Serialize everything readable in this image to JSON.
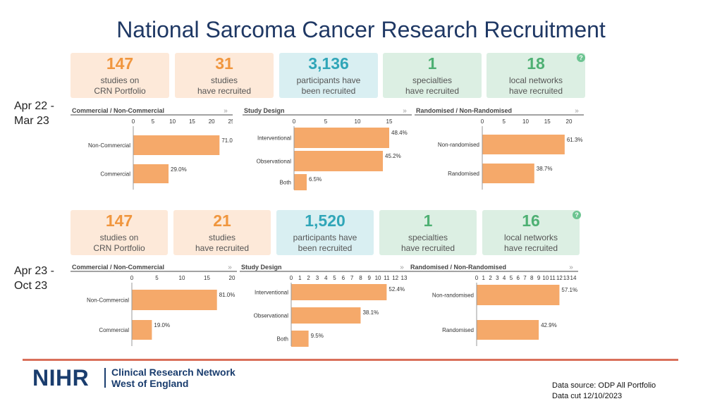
{
  "title": "National Sarcoma Cancer Research Recruitment",
  "periods": [
    {
      "label_line1": "Apr 22 -",
      "label_line2": "Mar 23",
      "cards": [
        {
          "value": "147",
          "line1": "studies on",
          "line2": "CRN Portfolio",
          "color": "orange"
        },
        {
          "value": "31",
          "line1": "studies",
          "line2": "have recruited",
          "color": "orange"
        },
        {
          "value": "3,136",
          "line1": "participants have",
          "line2": "been recruited",
          "color": "blue"
        },
        {
          "value": "1",
          "line1": "specialties",
          "line2": "have recruited",
          "color": "green"
        },
        {
          "value": "18",
          "line1": "local networks",
          "line2": "have recruited",
          "color": "green"
        }
      ],
      "help_icon": "?"
    },
    {
      "label_line1": "Apr 23 -",
      "label_line2": "Oct 23",
      "cards": [
        {
          "value": "147",
          "line1": "studies on",
          "line2": "CRN Portfolio",
          "color": "orange"
        },
        {
          "value": "21",
          "line1": "studies",
          "line2": "have recruited",
          "color": "orange"
        },
        {
          "value": "1,520",
          "line1": "participants have",
          "line2": "been recruited",
          "color": "blue"
        },
        {
          "value": "1",
          "line1": "specialties",
          "line2": "have recruited",
          "color": "green"
        },
        {
          "value": "16",
          "line1": "local networks",
          "line2": "have recruited",
          "color": "green"
        }
      ],
      "help_icon": "?"
    }
  ],
  "colors": {
    "bar": "#f5a96a",
    "axis": "#999999",
    "title_rule": "#444444"
  },
  "expand_icon": "»",
  "chart_data": [
    {
      "type": "bar",
      "orientation": "horizontal",
      "period": "Apr 22 - Mar 23",
      "title": "Commercial / Non-Commercial",
      "categories": [
        "Non-Commercial",
        "Commercial"
      ],
      "values": [
        22,
        9
      ],
      "labels": [
        "71.0%",
        "29.0%"
      ],
      "ticks": [
        "0",
        "5",
        "10",
        "15",
        "20",
        "25"
      ],
      "xlim": [
        0,
        25
      ]
    },
    {
      "type": "bar",
      "orientation": "horizontal",
      "period": "Apr 22 - Mar 23",
      "title": "Study Design",
      "categories": [
        "Interventional",
        "Observational",
        "Both"
      ],
      "values": [
        15,
        14,
        2
      ],
      "labels": [
        "48.4%",
        "45.2%",
        "6.5%"
      ],
      "ticks": [
        "0",
        "5",
        "10",
        "15"
      ],
      "xlim": [
        0,
        15
      ]
    },
    {
      "type": "bar",
      "orientation": "horizontal",
      "period": "Apr 22 - Mar 23",
      "title": "Randomised / Non-Randomised",
      "categories": [
        "Non-randomised",
        "Randomised"
      ],
      "values": [
        19,
        12
      ],
      "labels": [
        "61.3%",
        "38.7%"
      ],
      "ticks": [
        "0",
        "5",
        "10",
        "15",
        "20"
      ],
      "xlim": [
        0,
        20
      ]
    },
    {
      "type": "bar",
      "orientation": "horizontal",
      "period": "Apr 23 - Oct 23",
      "title": "Commercial / Non-Commercial",
      "categories": [
        "Non-Commercial",
        "Commercial"
      ],
      "values": [
        17,
        4
      ],
      "labels": [
        "81.0%",
        "19.0%"
      ],
      "ticks": [
        "0",
        "5",
        "10",
        "15",
        "20"
      ],
      "xlim": [
        0,
        20
      ]
    },
    {
      "type": "bar",
      "orientation": "horizontal",
      "period": "Apr 23 - Oct 23",
      "title": "Study Design",
      "categories": [
        "Interventional",
        "Observational",
        "Both"
      ],
      "values": [
        11,
        8,
        2
      ],
      "labels": [
        "52.4%",
        "38.1%",
        "9.5%"
      ],
      "ticks": [
        "0",
        "1",
        "2",
        "3",
        "4",
        "5",
        "6",
        "7",
        "8",
        "9",
        "10",
        "11",
        "12",
        "13"
      ],
      "xlim": [
        0,
        13
      ]
    },
    {
      "type": "bar",
      "orientation": "horizontal",
      "period": "Apr 23 - Oct 23",
      "title": "Randomised / Non-Randomised",
      "categories": [
        "Non-randomised",
        "Randomised"
      ],
      "values": [
        12,
        9
      ],
      "labels": [
        "57.1%",
        "42.9%"
      ],
      "ticks": [
        "0",
        "1",
        "2",
        "3",
        "4",
        "5",
        "6",
        "7",
        "8",
        "9",
        "10",
        "11",
        "12",
        "13",
        "14"
      ],
      "xlim": [
        0,
        14
      ]
    }
  ],
  "footer": {
    "logo_text": "NIHR",
    "network_line1": "Clinical Research Network",
    "network_line2": "West of England",
    "source_line1": "Data source: ODP All Portfolio",
    "source_line2": "Data cut 12/10/2023"
  }
}
